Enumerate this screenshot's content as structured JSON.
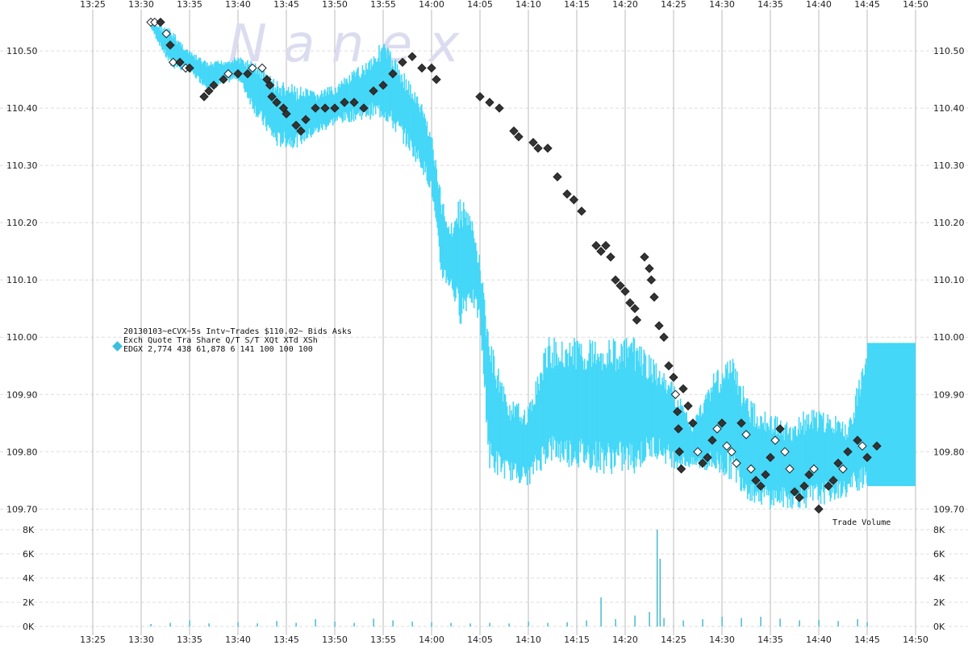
{
  "watermark": "N a n e x",
  "legend": {
    "line1": "20130103~eCVX~5s Intv~Trades $110.02~ Bids  Asks",
    "line2": "Exch Quote Tra  Share  Q/T   S/T  XQt XTd XSh",
    "line3": "EDGX 2,774 438 61,878     6   141 100 100 100",
    "marker_color": "#3bbfe0"
  },
  "volume_label": "Trade Volume",
  "colors": {
    "quote": "#44d7f7",
    "trade": "#333333",
    "volume": "#3bb6cc",
    "grid_v": "#bbbbbb",
    "grid_h": "#dddddd"
  },
  "chart_data": {
    "type": "scatter",
    "title": "",
    "x_ticks": [
      "13:25",
      "13:30",
      "13:35",
      "13:40",
      "13:45",
      "13:50",
      "13:55",
      "14:00",
      "14:05",
      "14:10",
      "14:15",
      "14:20",
      "14:25",
      "14:30",
      "14:35",
      "14:40",
      "14:45",
      "14:50"
    ],
    "xlim": [
      "13:25",
      "14:50"
    ],
    "price_axis": {
      "ticks": [
        "109.70",
        "109.80",
        "109.90",
        "110.00",
        "110.10",
        "110.20",
        "110.30",
        "110.40",
        "110.50"
      ],
      "ylim": [
        109.685,
        110.555
      ]
    },
    "volume_axis": {
      "label": "Trade Volume",
      "ticks": [
        "0K",
        "2K",
        "4K",
        "6K",
        "8K"
      ],
      "ylim": [
        0,
        8000
      ]
    },
    "quote_band": [
      {
        "t": "13:31",
        "hi": 110.55,
        "lo": 110.54
      },
      {
        "t": "13:33",
        "hi": 110.54,
        "lo": 110.47
      },
      {
        "t": "13:35",
        "hi": 110.5,
        "lo": 110.46
      },
      {
        "t": "13:37",
        "hi": 110.48,
        "lo": 110.43
      },
      {
        "t": "13:40",
        "hi": 110.49,
        "lo": 110.45
      },
      {
        "t": "13:42",
        "hi": 110.48,
        "lo": 110.38
      },
      {
        "t": "13:44",
        "hi": 110.45,
        "lo": 110.33
      },
      {
        "t": "13:46",
        "hi": 110.44,
        "lo": 110.33
      },
      {
        "t": "13:48",
        "hi": 110.43,
        "lo": 110.35
      },
      {
        "t": "13:50",
        "hi": 110.44,
        "lo": 110.37
      },
      {
        "t": "13:53",
        "hi": 110.48,
        "lo": 110.38
      },
      {
        "t": "13:55",
        "hi": 110.52,
        "lo": 110.38
      },
      {
        "t": "13:57",
        "hi": 110.47,
        "lo": 110.34
      },
      {
        "t": "13:59",
        "hi": 110.41,
        "lo": 110.29
      },
      {
        "t": "14:00",
        "hi": 110.36,
        "lo": 110.25
      },
      {
        "t": "14:01",
        "hi": 110.25,
        "lo": 110.1
      },
      {
        "t": "14:02",
        "hi": 110.2,
        "lo": 110.08
      },
      {
        "t": "14:03",
        "hi": 110.25,
        "lo": 110.02
      },
      {
        "t": "14:04",
        "hi": 110.22,
        "lo": 110.06
      },
      {
        "t": "14:05",
        "hi": 110.14,
        "lo": 110.02
      },
      {
        "t": "14:06",
        "hi": 110.0,
        "lo": 109.76
      },
      {
        "t": "14:08",
        "hi": 109.89,
        "lo": 109.75
      },
      {
        "t": "14:10",
        "hi": 109.88,
        "lo": 109.74
      },
      {
        "t": "14:12",
        "hi": 110.0,
        "lo": 109.78
      },
      {
        "t": "14:15",
        "hi": 110.0,
        "lo": 109.77
      },
      {
        "t": "14:18",
        "hi": 110.0,
        "lo": 109.76
      },
      {
        "t": "14:21",
        "hi": 110.0,
        "lo": 109.76
      },
      {
        "t": "14:23",
        "hi": 109.96,
        "lo": 109.79
      },
      {
        "t": "14:25",
        "hi": 109.92,
        "lo": 109.77
      },
      {
        "t": "14:27",
        "hi": 109.85,
        "lo": 109.77
      },
      {
        "t": "14:29",
        "hi": 109.94,
        "lo": 109.76
      },
      {
        "t": "14:31",
        "hi": 109.97,
        "lo": 109.75
      },
      {
        "t": "14:33",
        "hi": 109.89,
        "lo": 109.71
      },
      {
        "t": "14:35",
        "hi": 109.87,
        "lo": 109.7
      },
      {
        "t": "14:37",
        "hi": 109.85,
        "lo": 109.7
      },
      {
        "t": "14:39",
        "hi": 109.88,
        "lo": 109.7
      },
      {
        "t": "14:41",
        "hi": 109.87,
        "lo": 109.71
      },
      {
        "t": "14:43",
        "hi": 109.85,
        "lo": 109.72
      },
      {
        "t": "14:45",
        "hi": 109.99,
        "lo": 109.74
      },
      {
        "t": "14:50",
        "hi": 109.98,
        "lo": 109.74
      }
    ],
    "trades": [
      {
        "t": "13:31",
        "p": 110.55,
        "o": 1
      },
      {
        "t": "13:31.4",
        "p": 110.55,
        "o": 1
      },
      {
        "t": "13:32",
        "p": 110.55,
        "o": 0
      },
      {
        "t": "13:32.6",
        "p": 110.53,
        "o": 1
      },
      {
        "t": "13:33",
        "p": 110.51,
        "o": 0
      },
      {
        "t": "13:33.3",
        "p": 110.48,
        "o": 1
      },
      {
        "t": "13:34",
        "p": 110.48,
        "o": 0
      },
      {
        "t": "13:34.6",
        "p": 110.47,
        "o": 1
      },
      {
        "t": "13:35",
        "p": 110.47,
        "o": 0
      },
      {
        "t": "13:36.5",
        "p": 110.42,
        "o": 0
      },
      {
        "t": "13:37",
        "p": 110.43,
        "o": 0
      },
      {
        "t": "13:37.5",
        "p": 110.44,
        "o": 0
      },
      {
        "t": "13:38.5",
        "p": 110.45,
        "o": 0
      },
      {
        "t": "13:39",
        "p": 110.46,
        "o": 1
      },
      {
        "t": "13:40",
        "p": 110.46,
        "o": 0
      },
      {
        "t": "13:41",
        "p": 110.46,
        "o": 0
      },
      {
        "t": "13:41.5",
        "p": 110.47,
        "o": 1
      },
      {
        "t": "13:42.5",
        "p": 110.47,
        "o": 1
      },
      {
        "t": "13:43",
        "p": 110.45,
        "o": 0
      },
      {
        "t": "13:43.3",
        "p": 110.44,
        "o": 0
      },
      {
        "t": "13:43.5",
        "p": 110.42,
        "o": 0
      },
      {
        "t": "13:44",
        "p": 110.41,
        "o": 0
      },
      {
        "t": "13:44.7",
        "p": 110.4,
        "o": 0
      },
      {
        "t": "13:45",
        "p": 110.39,
        "o": 0
      },
      {
        "t": "13:46",
        "p": 110.37,
        "o": 0
      },
      {
        "t": "13:46.5",
        "p": 110.36,
        "o": 0
      },
      {
        "t": "13:47",
        "p": 110.38,
        "o": 0
      },
      {
        "t": "13:48",
        "p": 110.4,
        "o": 0
      },
      {
        "t": "13:49",
        "p": 110.4,
        "o": 0
      },
      {
        "t": "13:50",
        "p": 110.4,
        "o": 0
      },
      {
        "t": "13:51",
        "p": 110.41,
        "o": 0
      },
      {
        "t": "13:52",
        "p": 110.41,
        "o": 0
      },
      {
        "t": "13:53",
        "p": 110.4,
        "o": 0
      },
      {
        "t": "13:54",
        "p": 110.43,
        "o": 0
      },
      {
        "t": "13:55",
        "p": 110.44,
        "o": 0
      },
      {
        "t": "13:56",
        "p": 110.46,
        "o": 0
      },
      {
        "t": "13:57",
        "p": 110.48,
        "o": 0
      },
      {
        "t": "13:58",
        "p": 110.49,
        "o": 0
      },
      {
        "t": "13:59",
        "p": 110.47,
        "o": 0
      },
      {
        "t": "14:00",
        "p": 110.47,
        "o": 0
      },
      {
        "t": "14:00.5",
        "p": 110.45,
        "o": 0
      },
      {
        "t": "14:05",
        "p": 110.42,
        "o": 0
      },
      {
        "t": "14:06",
        "p": 110.41,
        "o": 0
      },
      {
        "t": "14:07",
        "p": 110.4,
        "o": 0
      },
      {
        "t": "14:08.5",
        "p": 110.36,
        "o": 0
      },
      {
        "t": "14:09",
        "p": 110.35,
        "o": 0
      },
      {
        "t": "14:10.5",
        "p": 110.34,
        "o": 0
      },
      {
        "t": "14:11",
        "p": 110.33,
        "o": 0
      },
      {
        "t": "14:12",
        "p": 110.33,
        "o": 0
      },
      {
        "t": "14:13",
        "p": 110.28,
        "o": 0
      },
      {
        "t": "14:14",
        "p": 110.25,
        "o": 0
      },
      {
        "t": "14:14.7",
        "p": 110.24,
        "o": 0
      },
      {
        "t": "14:15.5",
        "p": 110.22,
        "o": 0
      },
      {
        "t": "14:17",
        "p": 110.16,
        "o": 0
      },
      {
        "t": "14:17.5",
        "p": 110.15,
        "o": 0
      },
      {
        "t": "14:18",
        "p": 110.16,
        "o": 0
      },
      {
        "t": "14:18.5",
        "p": 110.14,
        "o": 0
      },
      {
        "t": "14:19",
        "p": 110.1,
        "o": 0
      },
      {
        "t": "14:19.5",
        "p": 110.09,
        "o": 0
      },
      {
        "t": "14:20",
        "p": 110.08,
        "o": 0
      },
      {
        "t": "14:20.5",
        "p": 110.06,
        "o": 0
      },
      {
        "t": "14:21",
        "p": 110.05,
        "o": 0
      },
      {
        "t": "14:21.2",
        "p": 110.03,
        "o": 0
      },
      {
        "t": "14:22",
        "p": 110.14,
        "o": 0
      },
      {
        "t": "14:22.5",
        "p": 110.12,
        "o": 0
      },
      {
        "t": "14:22.7",
        "p": 110.1,
        "o": 0
      },
      {
        "t": "14:23",
        "p": 110.07,
        "o": 0
      },
      {
        "t": "14:23.5",
        "p": 110.02,
        "o": 0
      },
      {
        "t": "14:24",
        "p": 110.0,
        "o": 0
      },
      {
        "t": "14:24.5",
        "p": 109.95,
        "o": 0
      },
      {
        "t": "14:25",
        "p": 109.93,
        "o": 0
      },
      {
        "t": "14:25.2",
        "p": 109.9,
        "o": 1
      },
      {
        "t": "14:25.4",
        "p": 109.87,
        "o": 0
      },
      {
        "t": "14:25.5",
        "p": 109.84,
        "o": 0
      },
      {
        "t": "14:25.6",
        "p": 109.8,
        "o": 0
      },
      {
        "t": "14:25.8",
        "p": 109.77,
        "o": 0
      },
      {
        "t": "14:26",
        "p": 109.91,
        "o": 0
      },
      {
        "t": "14:26.5",
        "p": 109.88,
        "o": 0
      },
      {
        "t": "14:27",
        "p": 109.85,
        "o": 0
      },
      {
        "t": "14:27.5",
        "p": 109.8,
        "o": 1
      },
      {
        "t": "14:28",
        "p": 109.78,
        "o": 0
      },
      {
        "t": "14:28.5",
        "p": 109.79,
        "o": 0
      },
      {
        "t": "14:29",
        "p": 109.82,
        "o": 0
      },
      {
        "t": "14:29.5",
        "p": 109.84,
        "o": 1
      },
      {
        "t": "14:30",
        "p": 109.85,
        "o": 0
      },
      {
        "t": "14:30.5",
        "p": 109.81,
        "o": 1
      },
      {
        "t": "14:31",
        "p": 109.8,
        "o": 1
      },
      {
        "t": "14:31.5",
        "p": 109.78,
        "o": 1
      },
      {
        "t": "14:32",
        "p": 109.85,
        "o": 0
      },
      {
        "t": "14:32.5",
        "p": 109.83,
        "o": 1
      },
      {
        "t": "14:33",
        "p": 109.77,
        "o": 1
      },
      {
        "t": "14:33.5",
        "p": 109.75,
        "o": 0
      },
      {
        "t": "14:34",
        "p": 109.74,
        "o": 0
      },
      {
        "t": "14:34.5",
        "p": 109.76,
        "o": 0
      },
      {
        "t": "14:35",
        "p": 109.79,
        "o": 0
      },
      {
        "t": "14:35.5",
        "p": 109.82,
        "o": 1
      },
      {
        "t": "14:36",
        "p": 109.84,
        "o": 0
      },
      {
        "t": "14:36.5",
        "p": 109.8,
        "o": 1
      },
      {
        "t": "14:37",
        "p": 109.77,
        "o": 1
      },
      {
        "t": "14:37.5",
        "p": 109.73,
        "o": 0
      },
      {
        "t": "14:38",
        "p": 109.72,
        "o": 0
      },
      {
        "t": "14:38.5",
        "p": 109.74,
        "o": 0
      },
      {
        "t": "14:39",
        "p": 109.76,
        "o": 0
      },
      {
        "t": "14:39.5",
        "p": 109.77,
        "o": 1
      },
      {
        "t": "14:40",
        "p": 109.7,
        "o": 0
      },
      {
        "t": "14:41",
        "p": 109.74,
        "o": 0
      },
      {
        "t": "14:41.5",
        "p": 109.75,
        "o": 0
      },
      {
        "t": "14:42",
        "p": 109.78,
        "o": 0
      },
      {
        "t": "14:42.5",
        "p": 109.77,
        "o": 1
      },
      {
        "t": "14:43",
        "p": 109.8,
        "o": 0
      },
      {
        "t": "14:44",
        "p": 109.82,
        "o": 0
      },
      {
        "t": "14:44.5",
        "p": 109.81,
        "o": 1
      },
      {
        "t": "14:45",
        "p": 109.79,
        "o": 0
      },
      {
        "t": "14:46",
        "p": 109.81,
        "o": 0
      }
    ],
    "volume": [
      {
        "t": "13:31",
        "v": 200
      },
      {
        "t": "13:33",
        "v": 300
      },
      {
        "t": "13:35",
        "v": 500
      },
      {
        "t": "13:37",
        "v": 250
      },
      {
        "t": "13:40",
        "v": 350
      },
      {
        "t": "13:42",
        "v": 250
      },
      {
        "t": "13:44",
        "v": 450
      },
      {
        "t": "13:46",
        "v": 300
      },
      {
        "t": "13:48",
        "v": 600
      },
      {
        "t": "13:50",
        "v": 400
      },
      {
        "t": "13:52",
        "v": 300
      },
      {
        "t": "13:54",
        "v": 650
      },
      {
        "t": "13:56",
        "v": 500
      },
      {
        "t": "13:58",
        "v": 400
      },
      {
        "t": "14:00",
        "v": 350
      },
      {
        "t": "14:02",
        "v": 300
      },
      {
        "t": "14:04",
        "v": 250
      },
      {
        "t": "14:06",
        "v": 300
      },
      {
        "t": "14:08",
        "v": 250
      },
      {
        "t": "14:10",
        "v": 400
      },
      {
        "t": "14:12",
        "v": 300
      },
      {
        "t": "14:14",
        "v": 350
      },
      {
        "t": "14:16",
        "v": 500
      },
      {
        "t": "14:17.5",
        "v": 2400
      },
      {
        "t": "14:19",
        "v": 600
      },
      {
        "t": "14:21",
        "v": 900
      },
      {
        "t": "14:22.5",
        "v": 1200
      },
      {
        "t": "14:23.3",
        "v": 8000
      },
      {
        "t": "14:23.6",
        "v": 5600
      },
      {
        "t": "14:24",
        "v": 700
      },
      {
        "t": "14:26",
        "v": 500
      },
      {
        "t": "14:28",
        "v": 600
      },
      {
        "t": "14:30",
        "v": 800
      },
      {
        "t": "14:32",
        "v": 700
      },
      {
        "t": "14:34",
        "v": 800
      },
      {
        "t": "14:36",
        "v": 650
      },
      {
        "t": "14:38",
        "v": 500
      },
      {
        "t": "14:40",
        "v": 550
      },
      {
        "t": "14:42",
        "v": 450
      },
      {
        "t": "14:44",
        "v": 600
      },
      {
        "t": "14:45",
        "v": 350
      }
    ]
  }
}
